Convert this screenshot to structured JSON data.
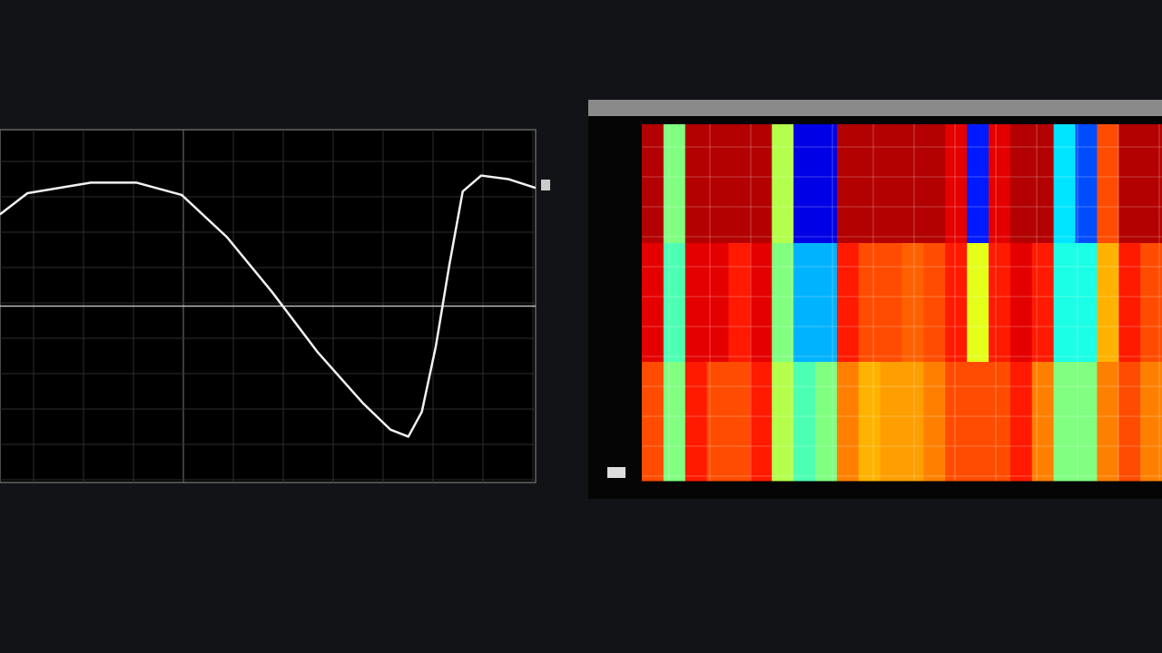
{
  "chart_data": [
    {
      "type": "line",
      "x": [
        0,
        0.55,
        1.82,
        2.73,
        3.64,
        4.55,
        5.45,
        6.36,
        7.27,
        7.82,
        8.18,
        8.45,
        8.73,
        9,
        9.27,
        9.64,
        10.18,
        10.73
      ],
      "series": [
        {
          "color": "#f2f2f2",
          "values": [
            0.52,
            0.64,
            0.7,
            0.7,
            0.63,
            0.39,
            0.08,
            -0.26,
            -0.55,
            -0.7,
            -0.74,
            -0.6,
            -0.23,
            0.23,
            0.65,
            0.74,
            0.72,
            0.67
          ]
        }
      ],
      "xlim": [
        0,
        10.73
      ],
      "ylim": [
        -1,
        1
      ],
      "grid": true
    },
    {
      "type": "heatmap",
      "colormap": "jet",
      "z": [
        [
          0.95,
          0.5,
          0.95,
          0.95,
          0.95,
          0.95,
          0.55,
          0.1,
          0.1,
          0.95,
          0.95,
          0.95,
          0.95,
          0.95,
          0.9,
          0.15,
          0.9,
          0.95,
          0.95,
          0.35,
          0.2,
          0.8,
          0.95,
          0.95
        ],
        [
          0.9,
          0.45,
          0.9,
          0.9,
          0.85,
          0.9,
          0.5,
          0.3,
          0.3,
          0.85,
          0.8,
          0.8,
          0.78,
          0.8,
          0.85,
          0.6,
          0.85,
          0.9,
          0.85,
          0.4,
          0.4,
          0.7,
          0.85,
          0.8
        ],
        [
          0.8,
          0.5,
          0.85,
          0.8,
          0.8,
          0.85,
          0.55,
          0.45,
          0.5,
          0.75,
          0.7,
          0.72,
          0.72,
          0.75,
          0.8,
          0.8,
          0.8,
          0.85,
          0.75,
          0.5,
          0.5,
          0.75,
          0.8,
          0.75
        ]
      ],
      "zlim": [
        0,
        1
      ],
      "grid": true
    }
  ]
}
